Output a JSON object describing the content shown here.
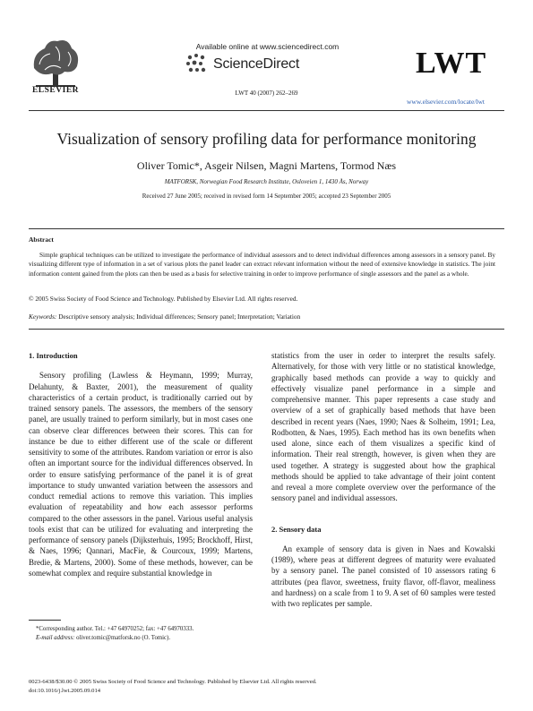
{
  "header": {
    "publisher": "ELSEVIER",
    "available_online": "Available online at www.sciencedirect.com",
    "service_name": "ScienceDirect",
    "journal_ref": "LWT 40 (2007) 262–269",
    "journal_abbrev": "LWT",
    "journal_url": "www.elsevier.com/locate/lwt"
  },
  "article": {
    "title": "Visualization of sensory profiling data for performance monitoring",
    "authors": "Oliver Tomic*, Asgeir Nilsen, Magni Martens, Tormod Næs",
    "affiliation": "MATFORSK, Norwegian Food Research Institute, Osloveien 1, 1430 Ås, Norway",
    "received": "Received 27 June 2005; received in revised form 14 September 2005; accepted 23 September 2005"
  },
  "abstract": {
    "heading": "Abstract",
    "text": "Simple graphical techniques can be utilized to investigate the performance of individual assessors and to detect individual differences among assessors in a sensory panel. By visualizing different type of information in a set of various plots the panel leader can extract relevant information without the need of extensive knowledge in statistics. The joint information content gained from the plots can then be used as a basis for selective training in order to improve performance of single assessors and the panel as a whole.",
    "copyright": "© 2005 Swiss Society of Food Science and Technology. Published by Elsevier Ltd. All rights reserved.",
    "keywords_label": "Keywords:",
    "keywords": "Descriptive sensory analysis; Individual differences; Sensory panel; Interpretation; Variation"
  },
  "body": {
    "sec1_heading": "1.  Introduction",
    "sec1_p1": "Sensory profiling (Lawless & Heymann, 1999; Murray, Delahunty, & Baxter, 2001), the measurement of quality characteristics of a certain product, is traditionally carried out by trained sensory panels. The assessors, the members of the sensory panel, are usually trained to perform similarly, but in most cases one can observe clear differences between their scores. This can for instance be due to either different use of the scale or different sensitivity to some of the attributes. Random variation or error is also often an important source for the individual differences observed. In order to ensure satisfying performance of the panel it is of great importance to study unwanted variation between the assessors and conduct remedial actions to remove this variation. This implies evaluation of repeatability and how each assessor performs compared to the other assessors in the panel. Various useful analysis tools exist that can be utilized for evaluating and interpreting the performance of sensory panels (Dijksterhuis, 1995; Brockhoff, Hirst, & Naes, 1996; Qannari, MacFie, & Courcoux, 1999; Martens, Bredie, & Martens, 2000). Some of these methods, however, can be somewhat complex and require substantial knowledge in",
    "col2_p1": "statistics from the user in order to interpret the results safely. Alternatively, for those with very little or no statistical knowledge, graphically based methods can provide a way to quickly and effectively visualize panel performance in a simple and comprehensive manner. This paper represents a case study and overview of a set of graphically based methods that have been described in recent years (Naes, 1990; Naes & Solheim, 1991; Lea, Rodbotten, & Naes, 1995). Each method has its own benefits when used alone, since each of them visualizes a specific kind of information. Their real strength, however, is given when they are used together. A strategy is suggested about how the graphical methods should be applied to take advantage of their joint content and reveal a more complete overview over the performance of the sensory panel and individual assessors.",
    "sec2_heading": "2.  Sensory data",
    "sec2_p1": "An example of sensory data is given in Naes and Kowalski (1989), where peas at different degrees of maturity were evaluated by a sensory panel. The panel consisted of 10 assessors rating 6 attributes (pea flavor, sweetness, fruity flavor, off-flavor, mealiness and hardness) on a scale from 1 to 9. A set of 60 samples were tested with two replicates per sample."
  },
  "footnote": {
    "line1": "*Corresponding author. Tel.: +47 64970252; fax: +47 64970333.",
    "email_label": "E-mail address:",
    "email": "oliver.tomic@matforsk.no (O. Tomic)."
  },
  "footer": {
    "line1": "0023-6438/$30.00 © 2005 Swiss Society of Food Science and Technology. Published by Elsevier Ltd. All rights reserved.",
    "line2": "doi:10.1016/j.lwt.2005.09.014"
  }
}
